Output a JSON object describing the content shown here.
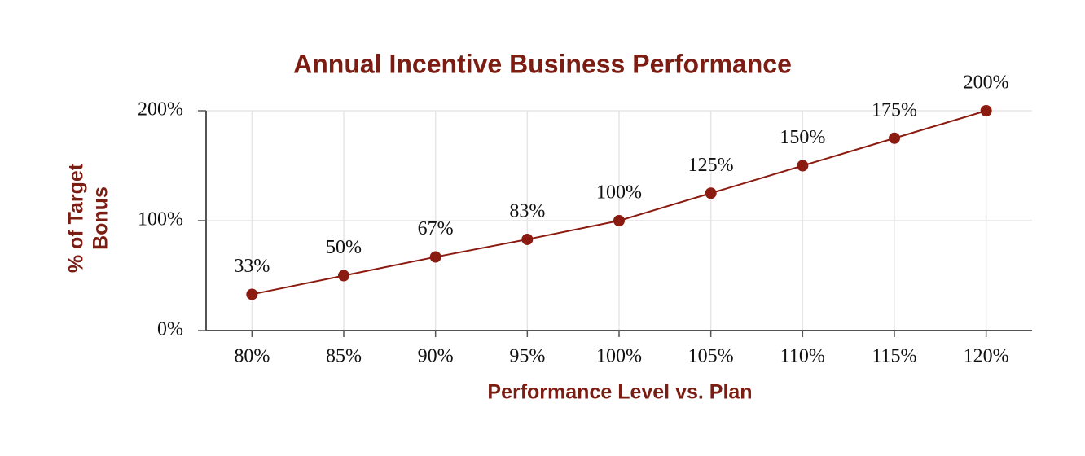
{
  "chart_data": {
    "type": "line",
    "title": "Annual Incentive Business Performance",
    "xlabel": "Performance Level vs. Plan",
    "ylabel": [
      "% of Target",
      "Bonus"
    ],
    "categories": [
      "80%",
      "85%",
      "90%",
      "95%",
      "100%",
      "105%",
      "110%",
      "115%",
      "120%"
    ],
    "series": [
      {
        "name": "% of Target Bonus",
        "color": "#8b1a10",
        "values": [
          33,
          50,
          67,
          83,
          100,
          125,
          150,
          175,
          200
        ],
        "value_labels": [
          "33%",
          "50%",
          "67%",
          "83%",
          "100%",
          "125%",
          "150%",
          "175%",
          "200%"
        ]
      }
    ],
    "ylim": [
      0,
      200
    ],
    "yticks": [
      {
        "value": 0,
        "label": "0%"
      },
      {
        "value": 100,
        "label": "100%"
      },
      {
        "value": 200,
        "label": "200%"
      }
    ],
    "grid": true,
    "legend": false
  }
}
